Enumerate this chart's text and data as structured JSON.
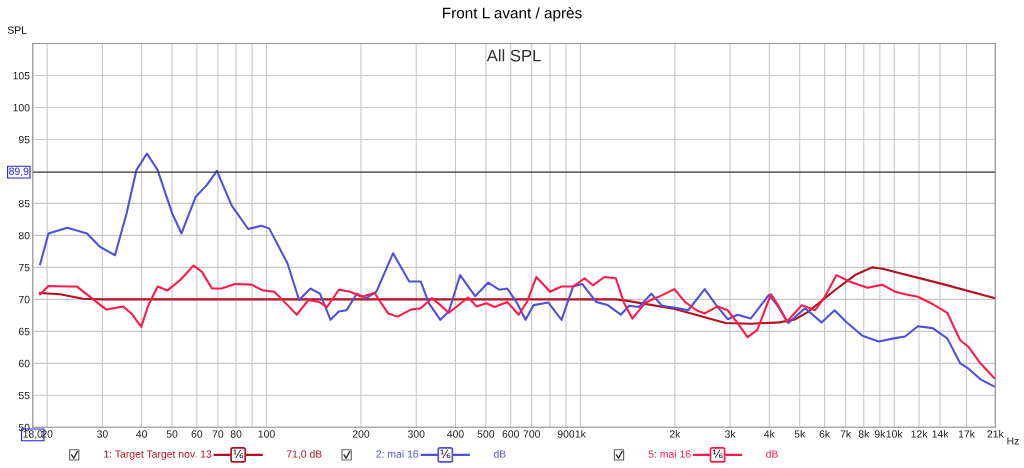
{
  "chart_data": {
    "type": "line",
    "title": "Front L avant / après",
    "subtitle": "All SPL",
    "ylabel": "SPL",
    "xlim": [
      18,
      21000
    ],
    "ylim": [
      50,
      110
    ],
    "log": "x",
    "grid": true,
    "legend": "bottom",
    "line_style": "solid",
    "marker": "none",
    "xticks": [
      {
        "value": 18,
        "label": "18,0"
      },
      20,
      30,
      40,
      50,
      60,
      70,
      80,
      {
        "value": 90,
        "label": null
      },
      100,
      200,
      300,
      400,
      500,
      600,
      700,
      {
        "value": 800,
        "label": null
      },
      900,
      {
        "value": 1000,
        "label": "1k"
      },
      {
        "value": 2000,
        "label": "2k"
      },
      {
        "value": 3000,
        "label": "3k"
      },
      {
        "value": 4000,
        "label": "4k"
      },
      {
        "value": 5000,
        "label": "5k"
      },
      {
        "value": 6000,
        "label": "6k"
      },
      {
        "value": 7000,
        "label": "7k"
      },
      {
        "value": 8000,
        "label": "8k"
      },
      {
        "value": 9000,
        "label": "9k"
      },
      {
        "value": 10000,
        "label": "10k"
      },
      {
        "value": 12000,
        "label": "12k"
      },
      {
        "value": 14000,
        "label": "14k"
      },
      {
        "value": 17000,
        "label": "17k"
      },
      {
        "value": 21000,
        "label": "21k"
      }
    ],
    "xlabel": "Hz",
    "yticks": [
      50,
      55,
      60,
      65,
      70,
      75,
      80,
      85,
      95,
      100,
      105
    ],
    "ref_lines": [
      {
        "axis": "y",
        "value": 89.9,
        "label": "89,9",
        "color": "#303030"
      }
    ],
    "annotations": [
      "⅙",
      "71,0 dB",
      "⅙",
      "dB",
      "⅙",
      "dB"
    ],
    "series": [
      {
        "name": "1: Target Target nov. 13",
        "color": "#b01020",
        "x": [
          19,
          22,
          26,
          30,
          1300,
          1400,
          2000,
          2900,
          3500,
          4300,
          4800,
          5300,
          6500,
          7500,
          8500,
          9200,
          10000,
          14000,
          20820
        ],
        "values": [
          71.0,
          70.8,
          70.1,
          70.0,
          70.0,
          69.8,
          68.5,
          66.3,
          66.2,
          66.4,
          66.8,
          68.0,
          71.5,
          73.8,
          75.0,
          74.8,
          74.3,
          72.5,
          70.2
        ]
      },
      {
        "name": "2: mai 16",
        "color": "#5050e0",
        "x": [
          19,
          20.2,
          23.2,
          26.8,
          29.5,
          32.9,
          35.8,
          38.5,
          41.6,
          45,
          50.1,
          53.6,
          59.4,
          64.6,
          69.5,
          77.4,
          87.4,
          96.2,
          102,
          116.7,
          127,
          138,
          148,
          160,
          170,
          180,
          194,
          208,
          224,
          253,
          285,
          310,
          329,
          358,
          381,
          414,
          462,
          508,
          553,
          585,
          629,
          669,
          710,
          791,
          871,
          948,
          1015,
          1123,
          1222,
          1346,
          1429,
          1537,
          1684,
          1819,
          2053,
          2207,
          2490,
          2710,
          2947,
          3170,
          3490,
          3990,
          4235,
          4600,
          5200,
          5870,
          6460,
          7020,
          7920,
          8930,
          9970,
          10830,
          11900,
          13260,
          14760,
          16230,
          17220,
          18830,
          20820
        ],
        "values": [
          75.5,
          80.3,
          81.2,
          80.3,
          78.2,
          76.9,
          83.4,
          90.2,
          92.8,
          90.2,
          83.4,
          80.3,
          86.0,
          87.9,
          90.1,
          84.7,
          81.0,
          81.5,
          81.1,
          75.6,
          69.9,
          71.7,
          70.9,
          66.8,
          68.1,
          68.3,
          70.9,
          70.2,
          71.2,
          77.2,
          72.8,
          72.8,
          69.4,
          66.8,
          68.1,
          73.8,
          70.5,
          72.6,
          71.5,
          71.7,
          69.4,
          66.8,
          69.1,
          69.5,
          66.8,
          72.0,
          72.4,
          69.6,
          69.1,
          67.6,
          69.0,
          68.8,
          70.9,
          69.0,
          68.6,
          68.3,
          71.6,
          69.1,
          66.9,
          67.6,
          67.0,
          70.7,
          69.1,
          66.3,
          68.6,
          66.4,
          68.3,
          66.5,
          64.3,
          63.4,
          63.9,
          64.2,
          65.8,
          65.5,
          63.9,
          60.0,
          59.2,
          57.5,
          56.4
        ]
      },
      {
        "name": "5: mai 16",
        "color": "#ff1a4a",
        "x": [
          19,
          20.2,
          23.2,
          24.9,
          27.4,
          30.9,
          34.9,
          37.1,
          39.9,
          41.9,
          45,
          48.4,
          53.3,
          58.6,
          62.3,
          67,
          72,
          79.3,
          89.5,
          97.4,
          106,
          116.7,
          125,
          136,
          147,
          156,
          170,
          185,
          201,
          221,
          244,
          262,
          288,
          310,
          337,
          358,
          381,
          439,
          467,
          502,
          533,
          585,
          636,
          676,
          724,
          801,
          871,
          948,
          1032,
          1096,
          1193,
          1297,
          1379,
          1464,
          1612,
          1796,
          1993,
          2154,
          2343,
          2490,
          2742,
          2947,
          3170,
          3410,
          3660,
          4050,
          4290,
          4550,
          5080,
          5600,
          6010,
          6550,
          7200,
          8220,
          9150,
          10060,
          10830,
          11900,
          13100,
          14760,
          16230,
          17220,
          18830,
          20820
        ],
        "values": [
          70.8,
          72.1,
          72.0,
          72.0,
          70.4,
          68.4,
          68.9,
          67.8,
          65.7,
          68.9,
          72.0,
          71.4,
          73.1,
          75.3,
          74.3,
          71.7,
          71.7,
          72.4,
          72.3,
          71.4,
          71.2,
          69.1,
          67.6,
          69.9,
          69.6,
          68.8,
          71.5,
          71.2,
          70.4,
          71.0,
          67.8,
          67.3,
          68.4,
          68.6,
          70.2,
          69.1,
          67.9,
          70.3,
          68.9,
          69.4,
          68.8,
          69.6,
          67.6,
          69.6,
          73.5,
          71.2,
          72.0,
          72.0,
          73.3,
          72.2,
          73.5,
          73.3,
          69.4,
          67.0,
          69.5,
          70.5,
          71.6,
          69.6,
          68.3,
          67.8,
          68.9,
          68.3,
          66.3,
          64.1,
          65.2,
          70.8,
          68.9,
          66.5,
          69.1,
          68.3,
          70.4,
          73.8,
          72.8,
          71.8,
          72.3,
          71.2,
          70.8,
          70.4,
          69.4,
          67.9,
          63.6,
          62.6,
          60.0,
          57.7
        ]
      }
    ]
  }
}
